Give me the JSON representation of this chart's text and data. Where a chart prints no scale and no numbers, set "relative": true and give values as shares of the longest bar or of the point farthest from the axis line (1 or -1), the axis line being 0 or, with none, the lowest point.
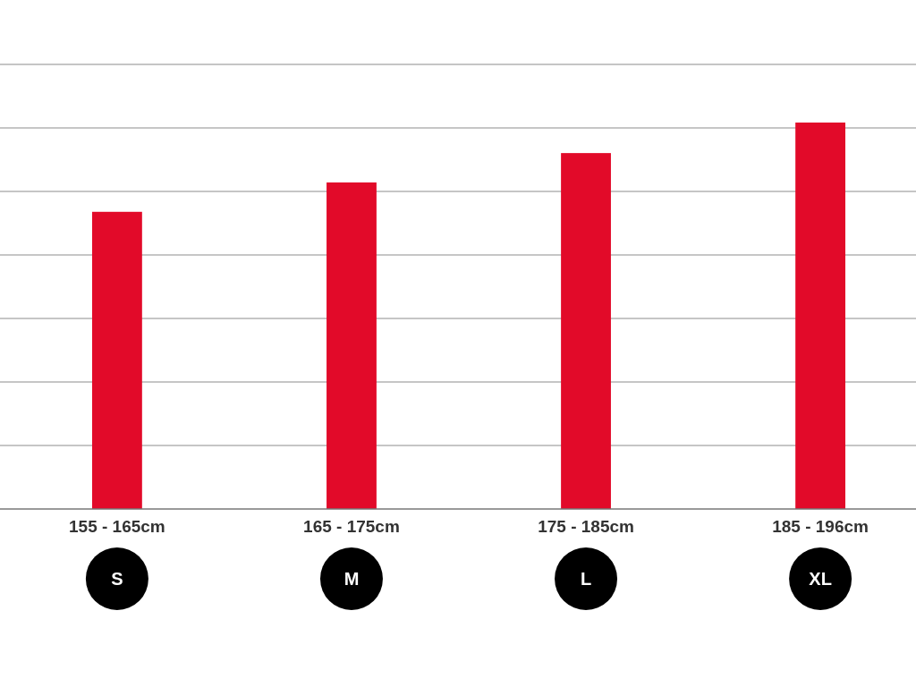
{
  "chart_data": {
    "type": "bar",
    "relative": true,
    "categories": [
      "155 - 165cm",
      "165 - 175cm",
      "175 - 185cm",
      "185 - 196cm"
    ],
    "values": [
      0.769,
      0.845,
      0.921,
      1
    ],
    "color": "#e20a29",
    "grid": "y",
    "annotations": [
      "S",
      "M",
      "L",
      "XL"
    ]
  }
}
